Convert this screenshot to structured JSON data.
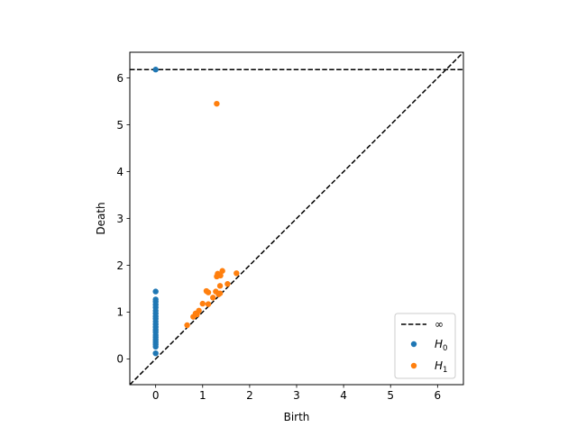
{
  "chart_data": {
    "type": "scatter",
    "title": "",
    "xlabel": "Birth",
    "ylabel": "Death",
    "xlim": [
      -0.55,
      6.55
    ],
    "ylim": [
      -0.55,
      6.55
    ],
    "x_ticks": [
      0,
      1,
      2,
      3,
      4,
      5,
      6
    ],
    "y_ticks": [
      0,
      1,
      2,
      3,
      4,
      5,
      6
    ],
    "grid": false,
    "legend_placement": "lower-right",
    "infinity_line": {
      "label": "∞",
      "death_value": 6.18,
      "color": "#000000",
      "style": "dashed"
    },
    "diagonal": {
      "color": "#000000",
      "style": "dashed"
    },
    "series": [
      {
        "name": "H",
        "subscript": "0",
        "color": "#1f77b4",
        "points": [
          [
            0,
            6.18
          ],
          [
            0,
            1.44
          ],
          [
            0,
            1.27
          ],
          [
            0,
            1.22
          ],
          [
            0,
            1.16
          ],
          [
            0,
            1.1
          ],
          [
            0,
            1.03
          ],
          [
            0,
            0.97
          ],
          [
            0,
            0.91
          ],
          [
            0,
            0.86
          ],
          [
            0,
            0.8
          ],
          [
            0,
            0.74
          ],
          [
            0,
            0.68
          ],
          [
            0,
            0.62
          ],
          [
            0,
            0.57
          ],
          [
            0,
            0.51
          ],
          [
            0,
            0.46
          ],
          [
            0,
            0.41
          ],
          [
            0,
            0.36
          ],
          [
            0,
            0.31
          ],
          [
            0,
            0.26
          ],
          [
            0,
            0.12
          ]
        ]
      },
      {
        "name": "H",
        "subscript": "1",
        "color": "#ff7f0e",
        "points": [
          [
            1.3,
            5.45
          ],
          [
            1.42,
            1.88
          ],
          [
            1.32,
            1.82
          ],
          [
            1.38,
            1.78
          ],
          [
            1.3,
            1.76
          ],
          [
            1.72,
            1.83
          ],
          [
            1.53,
            1.6
          ],
          [
            1.37,
            1.56
          ],
          [
            1.28,
            1.44
          ],
          [
            1.08,
            1.45
          ],
          [
            1.12,
            1.42
          ],
          [
            1.34,
            1.38
          ],
          [
            1.37,
            1.4
          ],
          [
            1.22,
            1.31
          ],
          [
            1.0,
            1.18
          ],
          [
            1.12,
            1.17
          ],
          [
            0.92,
            1.03
          ],
          [
            0.85,
            0.97
          ],
          [
            0.88,
            0.95
          ],
          [
            0.8,
            0.9
          ],
          [
            0.67,
            0.72
          ]
        ]
      }
    ]
  }
}
